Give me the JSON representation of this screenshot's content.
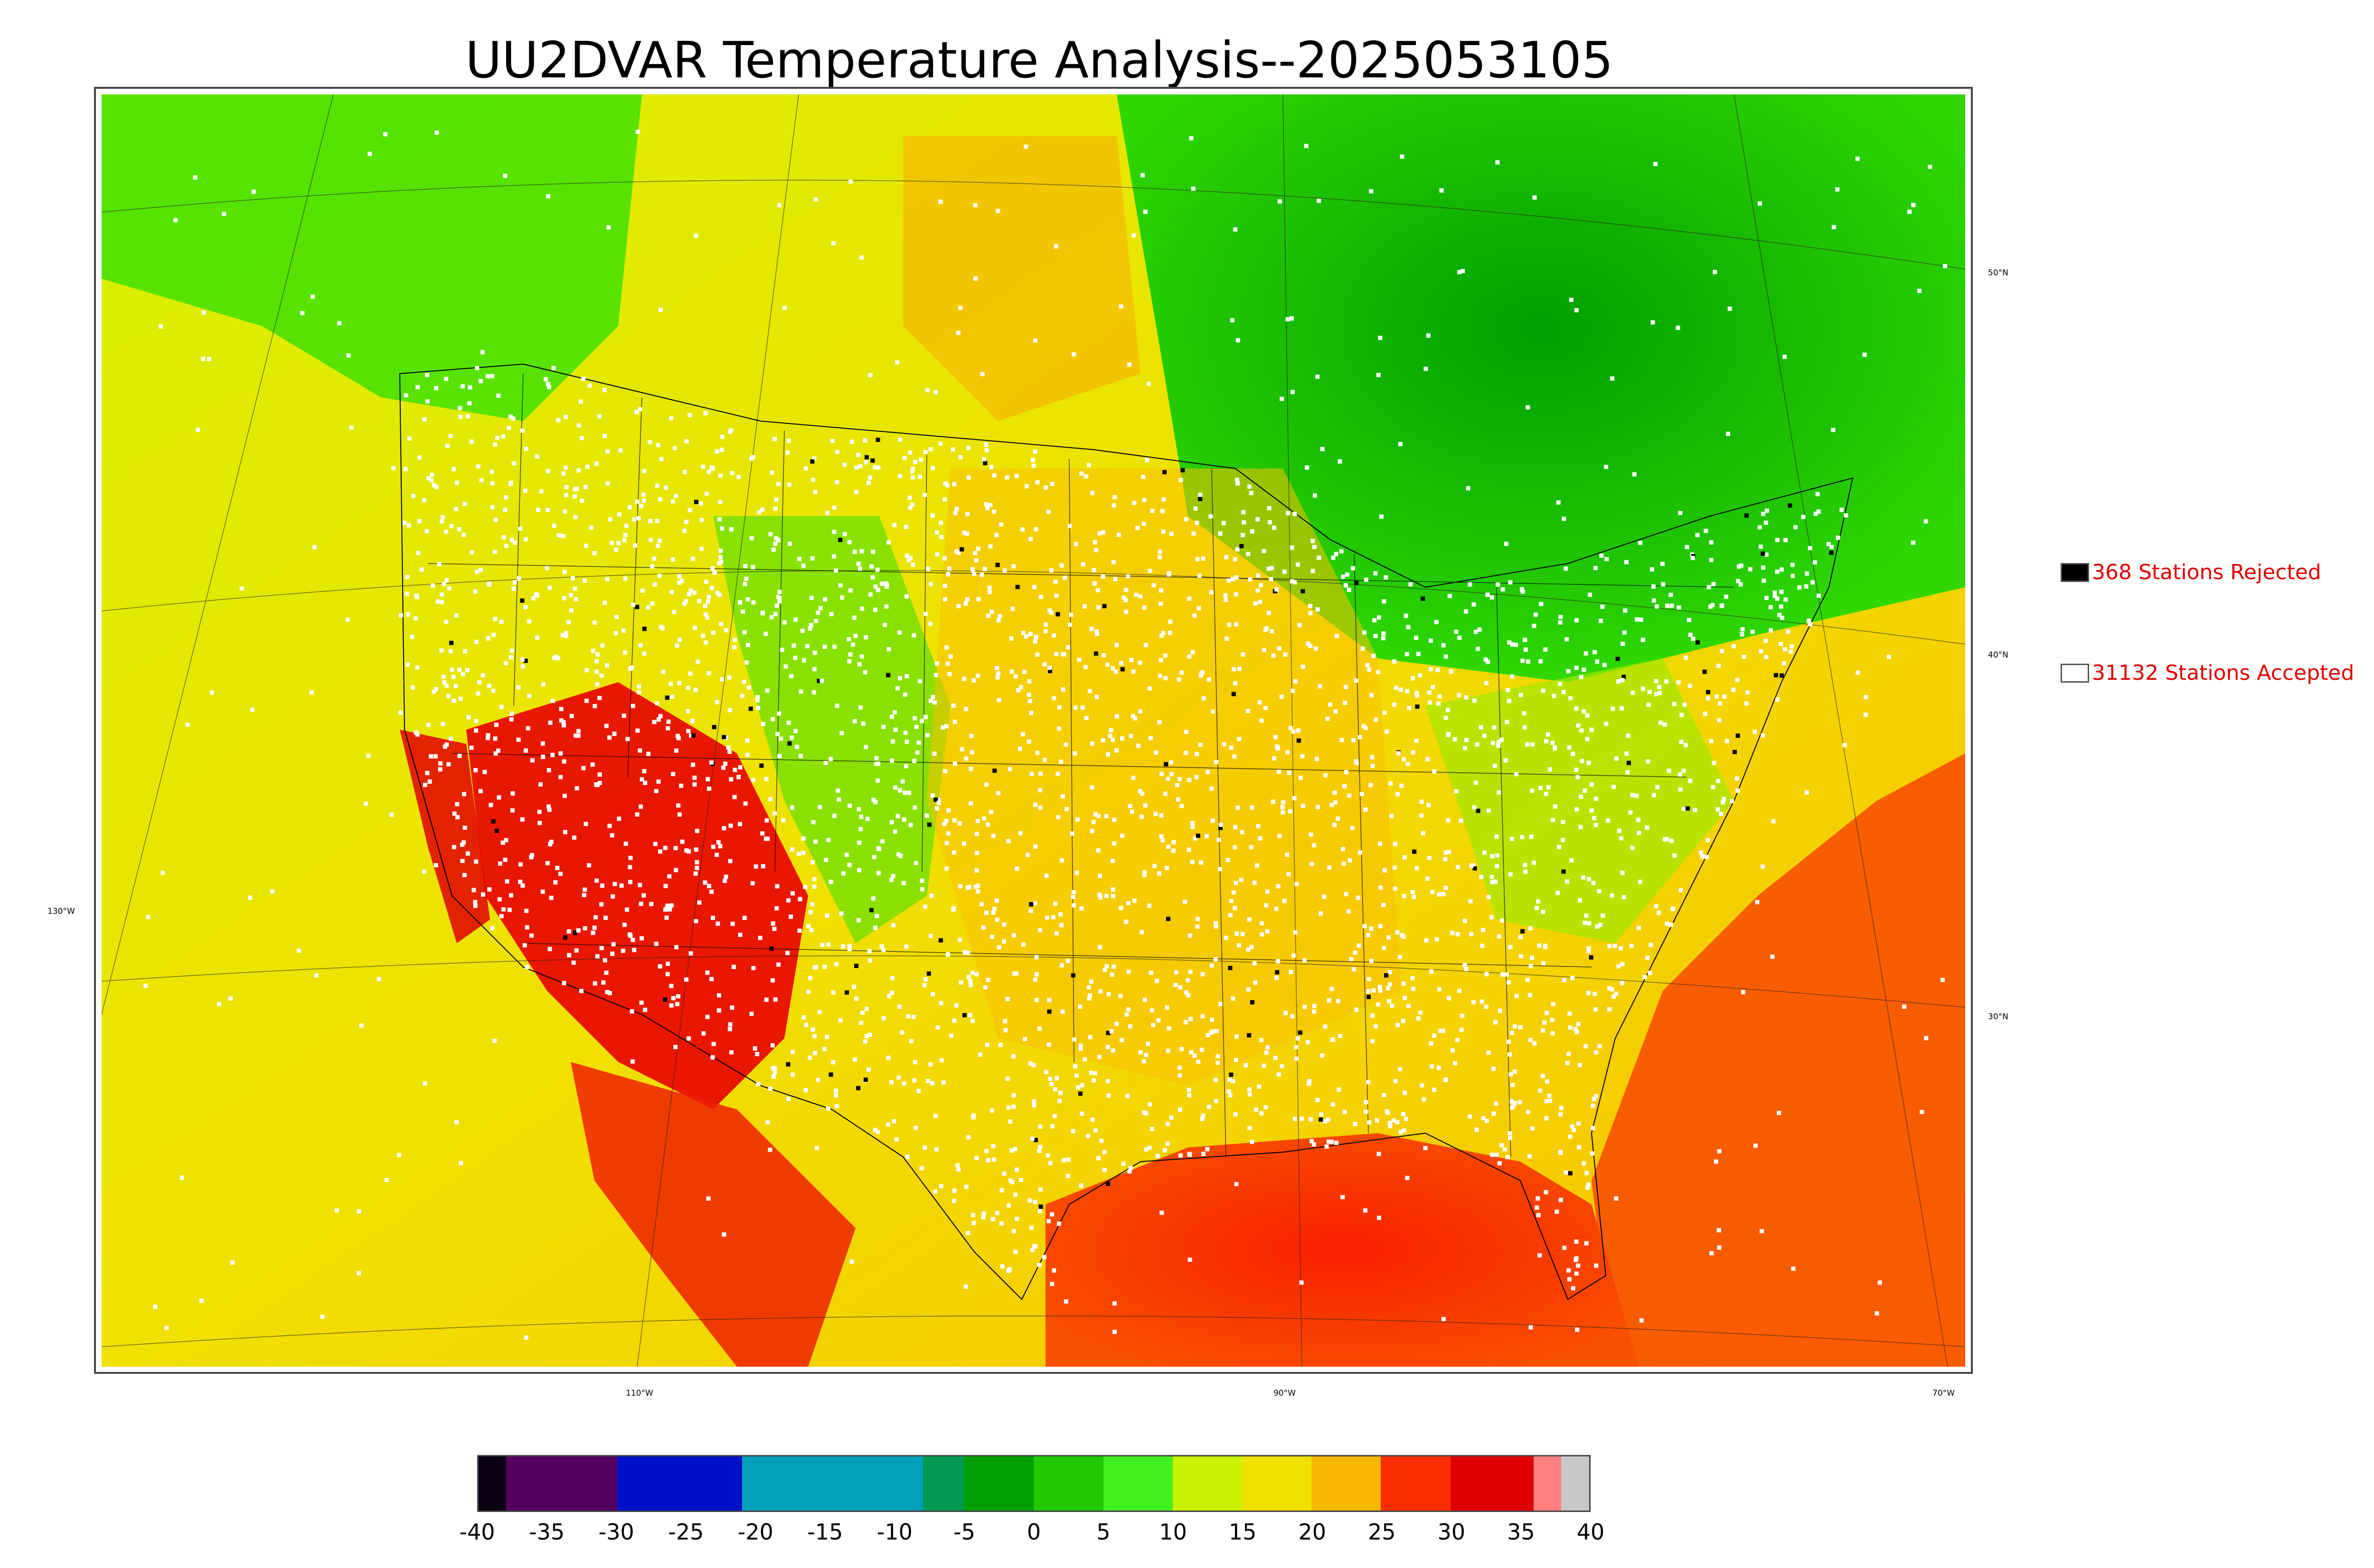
{
  "title": "UU2DVAR Temperature Analysis--2025053105",
  "map": {
    "latitude_labels": [
      "50°N",
      "40°N",
      "30°N"
    ],
    "longitude_labels": [
      "130°W",
      "110°W",
      "90°W",
      "70°W"
    ]
  },
  "legend": {
    "rejected": {
      "label": "368 Stations Rejected",
      "swatch_color": "#000000"
    },
    "accepted": {
      "label": "31132 Stations Accepted",
      "swatch_color": "#ffffff"
    },
    "text_color": "#e00000"
  },
  "colorbar": {
    "ticks": [
      "-40",
      "-35",
      "-30",
      "-25",
      "-20",
      "-15",
      "-10",
      "-5",
      "0",
      "5",
      "10",
      "15",
      "20",
      "25",
      "30",
      "35",
      "40"
    ],
    "min": -40,
    "max": 40,
    "colors": [
      {
        "from": -40,
        "to": -38,
        "color": "#0a0012"
      },
      {
        "from": -38,
        "to": -30,
        "color": "#550060"
      },
      {
        "from": -30,
        "to": -21,
        "color": "#0010c8"
      },
      {
        "from": -21,
        "to": -8,
        "color": "#00a0b8"
      },
      {
        "from": -8,
        "to": -5,
        "color": "#009a50"
      },
      {
        "from": -5,
        "to": 0,
        "color": "#00a000"
      },
      {
        "from": 0,
        "to": 5,
        "color": "#20c800"
      },
      {
        "from": 5,
        "to": 10,
        "color": "#40f020"
      },
      {
        "from": 10,
        "to": 15,
        "color": "#c8f000"
      },
      {
        "from": 15,
        "to": 20,
        "color": "#f0e000"
      },
      {
        "from": 20,
        "to": 25,
        "color": "#f8b800"
      },
      {
        "from": 25,
        "to": 30,
        "color": "#f83000"
      },
      {
        "from": 30,
        "to": 36,
        "color": "#e00000"
      },
      {
        "from": 36,
        "to": 38,
        "color": "#ff8080"
      },
      {
        "from": 38,
        "to": 40,
        "color": "#c8c8c8"
      }
    ]
  }
}
